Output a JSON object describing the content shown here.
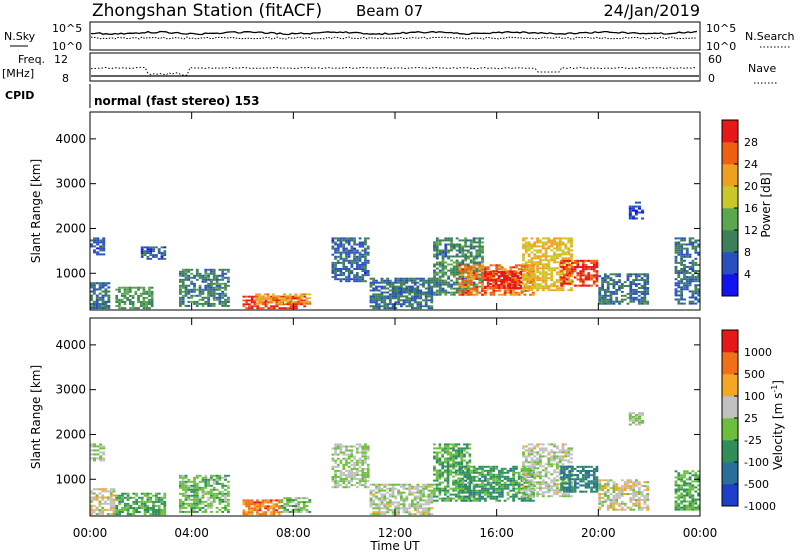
{
  "header": {
    "station": "Zhongshan Station (fitACF)",
    "beam": "Beam 07",
    "date": "24/Jan/2019"
  },
  "top_panels": {
    "nsky_label": "N.Sky",
    "nsky_ticks": [
      "10^5",
      "10^0"
    ],
    "nsearch_label": "N.Search",
    "nsearch_ticks": [
      "10^5",
      "10^0"
    ],
    "freq_label": "Freq.",
    "freq_unit": "[MHz]",
    "freq_ticks": [
      "12",
      "8"
    ],
    "nave_label": "Nave",
    "nave_ticks": [
      "60",
      "0"
    ],
    "cpid_label": "CPID",
    "cpid_text": "normal (fast stereo) 153"
  },
  "chart_data": [
    {
      "type": "heatmap",
      "name": "power",
      "ylabel": "Slant Range [km]",
      "xlabel": "Time UT",
      "x_ticks": [
        "00:00",
        "04:00",
        "08:00",
        "12:00",
        "16:00",
        "20:00",
        "00:00"
      ],
      "xlim_hours": [
        0,
        24
      ],
      "ylim": [
        180,
        4600
      ],
      "y_ticks": [
        1000,
        2000,
        3000,
        4000
      ],
      "colorbar": {
        "label": "Power [dB]",
        "ticks": [
          "4",
          "8",
          "12",
          "16",
          "20",
          "24",
          "28"
        ],
        "range": [
          0,
          30
        ],
        "colors": [
          "#1313f0",
          "#2a50c0",
          "#3c7f58",
          "#5aa84e",
          "#c8c828",
          "#f0a020",
          "#f06010",
          "#e81818"
        ]
      },
      "regions": [
        {
          "t0": 0.0,
          "t1": 0.8,
          "r0": 200,
          "r1": 800,
          "v": 8
        },
        {
          "t0": 0.0,
          "t1": 0.6,
          "r0": 1400,
          "r1": 1800,
          "v": 6
        },
        {
          "t0": 1.0,
          "t1": 2.5,
          "r0": 200,
          "r1": 700,
          "v": 11
        },
        {
          "t0": 2.0,
          "t1": 3.0,
          "r0": 1300,
          "r1": 1600,
          "v": 6
        },
        {
          "t0": 3.5,
          "t1": 5.5,
          "r0": 250,
          "r1": 1100,
          "v": 9
        },
        {
          "t0": 6.0,
          "t1": 8.5,
          "r0": 200,
          "r1": 500,
          "v": 28
        },
        {
          "t0": 6.5,
          "t1": 8.7,
          "r0": 300,
          "r1": 550,
          "v": 20
        },
        {
          "t0": 9.5,
          "t1": 11.0,
          "r0": 800,
          "r1": 1800,
          "v": 7
        },
        {
          "t0": 11.0,
          "t1": 13.5,
          "r0": 200,
          "r1": 900,
          "v": 8
        },
        {
          "t0": 13.5,
          "t1": 15.5,
          "r0": 500,
          "r1": 1800,
          "v": 10
        },
        {
          "t0": 14.5,
          "t1": 17.5,
          "r0": 500,
          "r1": 1200,
          "v": 24
        },
        {
          "t0": 15.5,
          "t1": 17.0,
          "r0": 650,
          "r1": 1050,
          "v": 28
        },
        {
          "t0": 17.0,
          "t1": 19.0,
          "r0": 600,
          "r1": 1800,
          "v": 19
        },
        {
          "t0": 18.5,
          "t1": 20.0,
          "r0": 700,
          "r1": 1300,
          "v": 27
        },
        {
          "t0": 20.0,
          "t1": 22.0,
          "r0": 300,
          "r1": 1000,
          "v": 8
        },
        {
          "t0": 21.2,
          "t1": 21.8,
          "r0": 2200,
          "r1": 2600,
          "v": 4
        },
        {
          "t0": 23.0,
          "t1": 24.0,
          "r0": 300,
          "r1": 1800,
          "v": 8
        }
      ]
    },
    {
      "type": "heatmap",
      "name": "velocity",
      "ylabel": "Slant Range [km]",
      "xlabel": "Time UT",
      "x_ticks": [
        "00:00",
        "04:00",
        "08:00",
        "12:00",
        "16:00",
        "20:00",
        "00:00"
      ],
      "xlim_hours": [
        0,
        24
      ],
      "ylim": [
        180,
        4600
      ],
      "y_ticks": [
        1000,
        2000,
        3000,
        4000
      ],
      "colorbar": {
        "label": "Velocity [m s^-1]",
        "ticks": [
          "1000",
          "500",
          "100",
          "25",
          "-25",
          "-100",
          "-500",
          "-1000"
        ],
        "range": [
          -1200,
          1200
        ],
        "colors": [
          "#1f3fc8",
          "#2a6f9a",
          "#2f8f5a",
          "#6cbf3c",
          "#c0c0c0",
          "#f5a623",
          "#f07018",
          "#e81818"
        ]
      },
      "regions": [
        {
          "t0": 0.0,
          "t1": 1.0,
          "r0": 200,
          "r1": 800,
          "v": 200
        },
        {
          "t0": 0.0,
          "t1": 0.6,
          "r0": 1400,
          "r1": 1800,
          "v": 0
        },
        {
          "t0": 1.0,
          "t1": 3.0,
          "r0": 200,
          "r1": 700,
          "v": -300
        },
        {
          "t0": 3.5,
          "t1": 5.5,
          "r0": 250,
          "r1": 1100,
          "v": -200
        },
        {
          "t0": 6.0,
          "t1": 7.5,
          "r0": 200,
          "r1": 550,
          "v": 700
        },
        {
          "t0": 7.5,
          "t1": 8.7,
          "r0": 250,
          "r1": 600,
          "v": -150
        },
        {
          "t0": 9.5,
          "t1": 11.0,
          "r0": 800,
          "r1": 1800,
          "v": 10
        },
        {
          "t0": 11.0,
          "t1": 13.5,
          "r0": 200,
          "r1": 900,
          "v": 60
        },
        {
          "t0": 13.5,
          "t1": 15.0,
          "r0": 500,
          "r1": 1800,
          "v": -300
        },
        {
          "t0": 14.5,
          "t1": 17.5,
          "r0": 500,
          "r1": 1300,
          "v": -400
        },
        {
          "t0": 17.0,
          "t1": 19.0,
          "r0": 600,
          "r1": 1800,
          "v": 80
        },
        {
          "t0": 18.5,
          "t1": 20.0,
          "r0": 700,
          "r1": 1300,
          "v": -600
        },
        {
          "t0": 20.0,
          "t1": 22.0,
          "r0": 300,
          "r1": 1000,
          "v": 150
        },
        {
          "t0": 21.2,
          "t1": 21.8,
          "r0": 2200,
          "r1": 2500,
          "v": 0
        },
        {
          "t0": 23.0,
          "t1": 24.0,
          "r0": 300,
          "r1": 1200,
          "v": -300
        }
      ]
    }
  ]
}
